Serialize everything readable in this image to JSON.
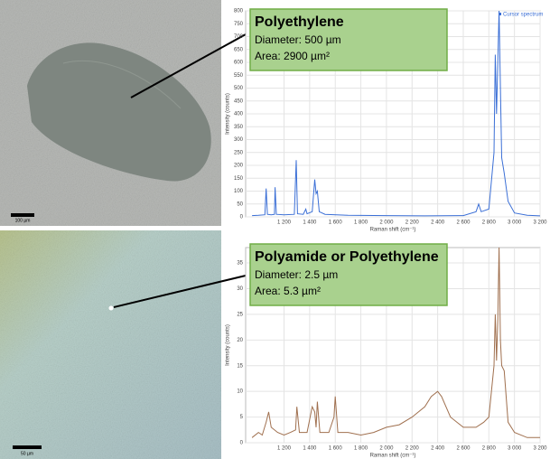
{
  "chart_data": [
    {
      "type": "line",
      "annotation_title": "Polyethylene",
      "annotation_lines": [
        "Diameter:  500 µm",
        "Area:  2900 µm²"
      ],
      "scale_bar": "100 µm",
      "xlabel": "Raman shift (cm⁻¹)",
      "ylabel": "Intensity (counts)",
      "legend": "top-right",
      "grid": true,
      "xlim": [
        900,
        3200
      ],
      "ylim": [
        0,
        800
      ],
      "xticks": [
        {
          "value": 1200,
          "label": "1 200"
        },
        {
          "value": 1400,
          "label": "1 400"
        },
        {
          "value": 1600,
          "label": "1 600"
        },
        {
          "value": 1800,
          "label": "1 800"
        },
        {
          "value": 2000,
          "label": "2 000"
        },
        {
          "value": 2200,
          "label": "2 200"
        },
        {
          "value": 2400,
          "label": "2 400"
        },
        {
          "value": 2600,
          "label": "2 600"
        },
        {
          "value": 2800,
          "label": "2 800"
        },
        {
          "value": 3000,
          "label": "3 000"
        },
        {
          "value": 3200,
          "label": "3 200"
        }
      ],
      "yticks": [
        0,
        50,
        100,
        150,
        200,
        250,
        300,
        350,
        400,
        450,
        500,
        550,
        600,
        650,
        700,
        750,
        800
      ],
      "x": [
        950,
        1000,
        1050,
        1060,
        1070,
        1100,
        1125,
        1130,
        1140,
        1200,
        1280,
        1295,
        1305,
        1350,
        1370,
        1380,
        1420,
        1440,
        1450,
        1460,
        1475,
        1520,
        1700,
        2000,
        2300,
        2600,
        2700,
        2720,
        2740,
        2800,
        2840,
        2850,
        2860,
        2870,
        2880,
        2890,
        2900,
        2920,
        2950,
        3000,
        3100,
        3200
      ],
      "series": [
        {
          "name": "Cursor spectrum",
          "color": "#3b6fd6",
          "values": [
            5,
            6,
            8,
            110,
            10,
            8,
            10,
            115,
            10,
            8,
            10,
            220,
            12,
            10,
            30,
            12,
            20,
            145,
            90,
            100,
            20,
            10,
            6,
            5,
            4,
            5,
            20,
            50,
            20,
            30,
            250,
            630,
            400,
            600,
            800,
            500,
            230,
            170,
            60,
            15,
            6,
            4
          ]
        }
      ]
    },
    {
      "type": "line",
      "annotation_title": "Polyamide or Polyethylene",
      "annotation_lines": [
        "Diameter: 2.5 µm",
        "Area: 5.3 µm²"
      ],
      "scale_bar": "50 µm",
      "xlabel": "Raman shift (cm⁻¹)",
      "ylabel": "Intensity (counts)",
      "grid": true,
      "xlim": [
        900,
        3200
      ],
      "ylim": [
        0,
        38
      ],
      "xticks": [
        {
          "value": 1200,
          "label": "1 200"
        },
        {
          "value": 1400,
          "label": "1 400"
        },
        {
          "value": 1600,
          "label": "1 600"
        },
        {
          "value": 1800,
          "label": "1 800"
        },
        {
          "value": 2000,
          "label": "2 000"
        },
        {
          "value": 2200,
          "label": "2 200"
        },
        {
          "value": 2400,
          "label": "2 400"
        },
        {
          "value": 2600,
          "label": "2 600"
        },
        {
          "value": 2800,
          "label": "2 800"
        },
        {
          "value": 3000,
          "label": "3 000"
        },
        {
          "value": 3200,
          "label": "3 200"
        }
      ],
      "yticks": [
        0,
        5,
        10,
        15,
        20,
        25,
        30,
        35
      ],
      "x": [
        950,
        1000,
        1030,
        1060,
        1080,
        1100,
        1150,
        1200,
        1250,
        1290,
        1300,
        1320,
        1380,
        1420,
        1440,
        1450,
        1460,
        1480,
        1550,
        1590,
        1600,
        1620,
        1700,
        1800,
        1900,
        2000,
        2100,
        2200,
        2300,
        2350,
        2400,
        2430,
        2500,
        2600,
        2700,
        2760,
        2800,
        2840,
        2850,
        2860,
        2870,
        2880,
        2890,
        2900,
        2920,
        2950,
        3000,
        3100,
        3200
      ],
      "series": [
        {
          "color": "#a0704f",
          "values": [
            1,
            2,
            1.5,
            4,
            6,
            3,
            2,
            1.5,
            2,
            2.5,
            7,
            2,
            2,
            7,
            6,
            3,
            8,
            2,
            2,
            5,
            9,
            2,
            2,
            1.5,
            2,
            3,
            3.5,
            5,
            7,
            9,
            10,
            9,
            5,
            3,
            3,
            4,
            5,
            15,
            25,
            16,
            24,
            38,
            20,
            15,
            14,
            4,
            2,
            1,
            1
          ]
        }
      ]
    }
  ]
}
